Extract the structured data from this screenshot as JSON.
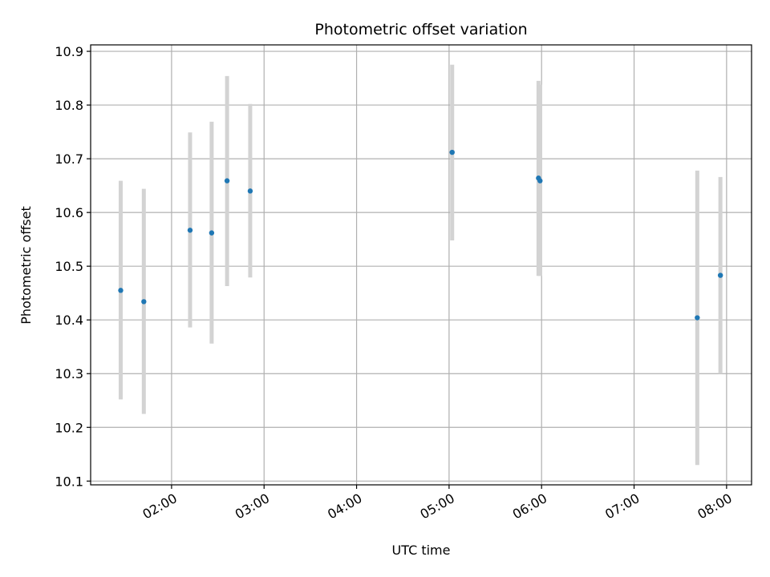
{
  "chart_data": {
    "type": "scatter",
    "title": "Photometric offset variation",
    "xlabel": "UTC time",
    "ylabel": "Photometric offset",
    "x_tick_labels": [
      "02:00",
      "03:00",
      "04:00",
      "05:00",
      "06:00",
      "07:00",
      "08:00"
    ],
    "x_tick_hours": [
      2,
      3,
      4,
      5,
      6,
      7,
      8
    ],
    "xlim_hours": [
      1.125,
      8.27
    ],
    "y_ticks": [
      10.1,
      10.2,
      10.3,
      10.4,
      10.5,
      10.6,
      10.7,
      10.8,
      10.9
    ],
    "y_tick_labels": [
      "10.1",
      "10.2",
      "10.3",
      "10.4",
      "10.5",
      "10.6",
      "10.7",
      "10.8",
      "10.9"
    ],
    "ylim": [
      10.093,
      10.912
    ],
    "grid": true,
    "colors": {
      "point": "#1f77b4",
      "errorbar": "#d3d3d3",
      "grid": "#b0b0b0"
    },
    "points": [
      {
        "time": "01:27",
        "y": 10.455,
        "ylow": 10.252,
        "yhigh": 10.659
      },
      {
        "time": "01:42",
        "y": 10.434,
        "ylow": 10.225,
        "yhigh": 10.644
      },
      {
        "time": "02:12",
        "y": 10.567,
        "ylow": 10.386,
        "yhigh": 10.749
      },
      {
        "time": "02:26",
        "y": 10.562,
        "ylow": 10.356,
        "yhigh": 10.769
      },
      {
        "time": "02:36",
        "y": 10.659,
        "ylow": 10.463,
        "yhigh": 10.854
      },
      {
        "time": "02:51",
        "y": 10.64,
        "ylow": 10.479,
        "yhigh": 10.802
      },
      {
        "time": "05:02",
        "y": 10.712,
        "ylow": 10.548,
        "yhigh": 10.875
      },
      {
        "time": "05:58",
        "y": 10.664,
        "ylow": 10.482,
        "yhigh": 10.845
      },
      {
        "time": "05:59",
        "y": 10.659,
        "ylow": 10.482,
        "yhigh": 10.838
      },
      {
        "time": "07:41",
        "y": 10.404,
        "ylow": 10.13,
        "yhigh": 10.678
      },
      {
        "time": "07:56",
        "y": 10.483,
        "ylow": 10.3,
        "yhigh": 10.666
      }
    ]
  }
}
